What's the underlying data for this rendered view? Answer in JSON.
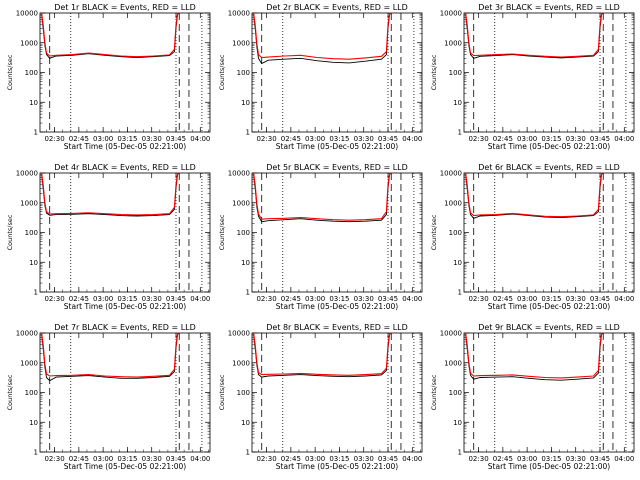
{
  "chart_data": {
    "type": "line",
    "title_template": "Det {n}r BLACK = Events, RED = LLD",
    "xlabel": "Start Time (05-Dec-05 02:21:00)",
    "ylabel": "Counts/sec",
    "x_tick_labels": [
      "02:30",
      "02:45",
      "03:00",
      "03:15",
      "03:30",
      "03:45",
      "04:00"
    ],
    "y_tick_labels": [
      "1",
      "10",
      "100",
      "1000",
      "10000"
    ],
    "y_log": true,
    "ylim": [
      1,
      10000
    ],
    "xlim_minutes": [
      0,
      105
    ],
    "colors": {
      "events": "#000000",
      "lld": "#ff0000"
    },
    "vlines_dashed_minutes": [
      6,
      86,
      92
    ],
    "vlines_dotted_minutes": [
      19,
      84,
      100
    ],
    "panels": [
      {
        "title": "Det 1r BLACK = Events, RED = LLD",
        "series": [
          {
            "name": "Events",
            "x": [
              1,
              2,
              3,
              4,
              6,
              10,
              20,
              30,
              40,
              50,
              60,
              70,
              80,
              83,
              84,
              85,
              86
            ],
            "y": [
              9000,
              3000,
              800,
              400,
              300,
              360,
              380,
              430,
              380,
              340,
              320,
              340,
              370,
              500,
              3000,
              9000,
              10000
            ]
          },
          {
            "name": "LLD",
            "x": [
              1,
              2,
              3,
              4,
              6,
              10,
              20,
              30,
              40,
              50,
              60,
              70,
              80,
              83,
              84,
              85,
              86
            ],
            "y": [
              10000,
              4000,
              1000,
              450,
              360,
              380,
              400,
              450,
              400,
              360,
              340,
              360,
              390,
              600,
              4000,
              10000,
              10000
            ]
          }
        ]
      },
      {
        "title": "Det 2r BLACK = Events, RED = LLD",
        "series": [
          {
            "name": "Events",
            "x": [
              1,
              2,
              3,
              4,
              6,
              10,
              20,
              30,
              40,
              50,
              60,
              70,
              80,
              83,
              84,
              85,
              86
            ],
            "y": [
              9000,
              3000,
              700,
              300,
              200,
              260,
              280,
              300,
              250,
              220,
              210,
              240,
              280,
              400,
              3000,
              9000,
              10000
            ]
          },
          {
            "name": "LLD",
            "x": [
              1,
              2,
              3,
              4,
              6,
              10,
              20,
              30,
              40,
              50,
              60,
              70,
              80,
              83,
              84,
              85,
              86
            ],
            "y": [
              10000,
              4000,
              900,
              400,
              320,
              330,
              360,
              380,
              320,
              290,
              280,
              310,
              350,
              500,
              4000,
              10000,
              10000
            ]
          }
        ]
      },
      {
        "title": "Det 3r BLACK = Events, RED = LLD",
        "series": [
          {
            "name": "Events",
            "x": [
              1,
              2,
              3,
              4,
              6,
              10,
              20,
              30,
              40,
              50,
              60,
              70,
              80,
              83,
              84,
              85,
              86
            ],
            "y": [
              9000,
              3000,
              800,
              400,
              300,
              350,
              370,
              400,
              360,
              330,
              310,
              330,
              360,
              500,
              3000,
              9000,
              10000
            ]
          },
          {
            "name": "LLD",
            "x": [
              1,
              2,
              3,
              4,
              6,
              10,
              20,
              30,
              40,
              50,
              60,
              70,
              80,
              83,
              84,
              85,
              86
            ],
            "y": [
              10000,
              4000,
              1000,
              450,
              370,
              380,
              400,
              420,
              380,
              350,
              330,
              350,
              380,
              600,
              4000,
              10000,
              10000
            ]
          }
        ]
      },
      {
        "title": "Det 4r BLACK = Events, RED = LLD",
        "series": [
          {
            "name": "Events",
            "x": [
              1,
              2,
              3,
              4,
              6,
              10,
              20,
              30,
              40,
              50,
              60,
              70,
              80,
              83,
              84,
              85,
              86
            ],
            "y": [
              9000,
              3000,
              800,
              450,
              380,
              400,
              410,
              430,
              400,
              370,
              360,
              370,
              400,
              600,
              3000,
              9000,
              10000
            ]
          },
          {
            "name": "LLD",
            "x": [
              1,
              2,
              3,
              4,
              6,
              10,
              20,
              30,
              40,
              50,
              60,
              70,
              80,
              83,
              84,
              85,
              86
            ],
            "y": [
              10000,
              4000,
              1000,
              500,
              420,
              430,
              440,
              460,
              430,
              400,
              390,
              400,
              430,
              700,
              4000,
              10000,
              10000
            ]
          }
        ]
      },
      {
        "title": "Det 5r BLACK = Events, RED = LLD",
        "series": [
          {
            "name": "Events",
            "x": [
              1,
              2,
              3,
              4,
              6,
              10,
              20,
              30,
              40,
              50,
              60,
              70,
              80,
              83,
              84,
              85,
              86
            ],
            "y": [
              9000,
              3000,
              700,
              350,
              230,
              250,
              270,
              290,
              260,
              240,
              230,
              240,
              260,
              400,
              3000,
              9000,
              10000
            ]
          },
          {
            "name": "LLD",
            "x": [
              1,
              2,
              3,
              4,
              6,
              10,
              20,
              30,
              40,
              50,
              60,
              70,
              80,
              83,
              84,
              85,
              86
            ],
            "y": [
              10000,
              4000,
              900,
              420,
              280,
              290,
              300,
              320,
              290,
              270,
              260,
              270,
              290,
              500,
              4000,
              10000,
              10000
            ]
          }
        ]
      },
      {
        "title": "Det 6r BLACK = Events, RED = LLD",
        "series": [
          {
            "name": "Events",
            "x": [
              1,
              2,
              3,
              4,
              6,
              10,
              20,
              30,
              40,
              50,
              60,
              70,
              80,
              83,
              84,
              85,
              86
            ],
            "y": [
              9000,
              3000,
              800,
              400,
              300,
              360,
              380,
              420,
              370,
              330,
              320,
              340,
              370,
              500,
              3000,
              9000,
              10000
            ]
          },
          {
            "name": "LLD",
            "x": [
              1,
              2,
              3,
              4,
              6,
              10,
              20,
              30,
              40,
              50,
              60,
              70,
              80,
              83,
              84,
              85,
              86
            ],
            "y": [
              10000,
              4000,
              1000,
              460,
              370,
              390,
              400,
              440,
              390,
              350,
              340,
              360,
              390,
              600,
              4000,
              10000,
              10000
            ]
          }
        ]
      },
      {
        "title": "Det 7r BLACK = Events, RED = LLD",
        "series": [
          {
            "name": "Events",
            "x": [
              1,
              2,
              3,
              4,
              6,
              10,
              20,
              30,
              40,
              50,
              60,
              70,
              80,
              83,
              84,
              85,
              86
            ],
            "y": [
              9000,
              3000,
              700,
              320,
              250,
              330,
              350,
              370,
              330,
              300,
              300,
              320,
              350,
              500,
              3000,
              9000,
              10000
            ]
          },
          {
            "name": "LLD",
            "x": [
              1,
              2,
              3,
              4,
              6,
              10,
              20,
              30,
              40,
              50,
              60,
              70,
              80,
              83,
              84,
              85,
              86
            ],
            "y": [
              10000,
              4000,
              900,
              420,
              360,
              370,
              380,
              400,
              360,
              340,
              330,
              350,
              380,
              600,
              4000,
              10000,
              10000
            ]
          }
        ]
      },
      {
        "title": "Det 8r BLACK = Events, RED = LLD",
        "series": [
          {
            "name": "Events",
            "x": [
              1,
              2,
              3,
              4,
              6,
              10,
              20,
              30,
              40,
              50,
              60,
              70,
              80,
              83,
              84,
              85,
              86
            ],
            "y": [
              9000,
              3000,
              800,
              400,
              330,
              360,
              380,
              400,
              370,
              350,
              340,
              360,
              390,
              550,
              3000,
              9000,
              10000
            ]
          },
          {
            "name": "LLD",
            "x": [
              1,
              2,
              3,
              4,
              6,
              10,
              20,
              30,
              40,
              50,
              60,
              70,
              80,
              83,
              84,
              85,
              86
            ],
            "y": [
              10000,
              4000,
              1000,
              470,
              400,
              410,
              420,
              440,
              410,
              390,
              380,
              400,
              430,
              650,
              4000,
              10000,
              10000
            ]
          }
        ]
      },
      {
        "title": "Det 9r BLACK = Events, RED = LLD",
        "series": [
          {
            "name": "Events",
            "x": [
              1,
              2,
              3,
              4,
              6,
              10,
              20,
              30,
              40,
              50,
              60,
              70,
              80,
              83,
              84,
              85,
              86
            ],
            "y": [
              9000,
              3000,
              800,
              380,
              280,
              320,
              330,
              340,
              300,
              270,
              260,
              280,
              310,
              450,
              3000,
              9000,
              10000
            ]
          },
          {
            "name": "LLD",
            "x": [
              1,
              2,
              3,
              4,
              6,
              10,
              20,
              30,
              40,
              50,
              60,
              70,
              80,
              83,
              84,
              85,
              86
            ],
            "y": [
              10000,
              4000,
              1000,
              450,
              360,
              370,
              380,
              390,
              350,
              320,
              310,
              330,
              360,
              550,
              4000,
              10000,
              10000
            ]
          }
        ]
      }
    ]
  }
}
